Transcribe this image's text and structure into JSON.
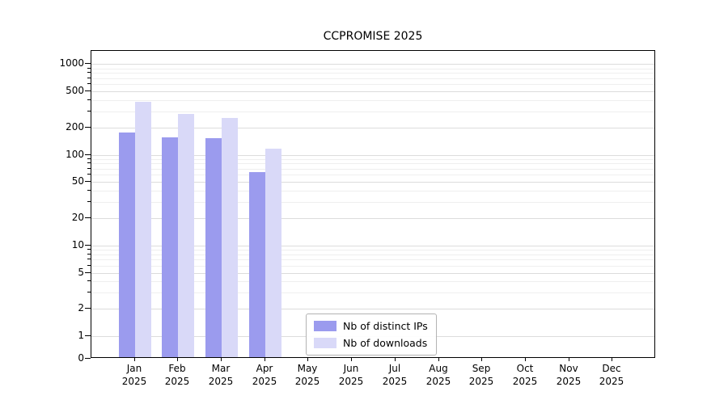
{
  "chart_data": {
    "type": "bar",
    "title": "CCPROMISE 2025",
    "x_year": "2025",
    "categories": [
      "Jan",
      "Feb",
      "Mar",
      "Apr",
      "May",
      "Jun",
      "Jul",
      "Aug",
      "Sep",
      "Oct",
      "Nov",
      "Dec"
    ],
    "series": [
      {
        "name": "Nb of distinct IPs",
        "color": "#9b9bee",
        "values": [
          170,
          150,
          145,
          62,
          0,
          0,
          0,
          0,
          0,
          0,
          0,
          0
        ]
      },
      {
        "name": "Nb of downloads",
        "color": "#d9d9f8",
        "values": [
          365,
          270,
          245,
          112,
          0,
          0,
          0,
          0,
          0,
          0,
          0,
          0
        ]
      }
    ],
    "y_scale": "symlog",
    "ylim": [
      0,
      1400
    ],
    "y_ticks": [
      0,
      1,
      2,
      5,
      10,
      20,
      50,
      100,
      200,
      500,
      1000
    ],
    "y_minor_ticks": [
      3,
      4,
      6,
      7,
      8,
      9,
      30,
      40,
      60,
      70,
      80,
      90,
      300,
      400,
      600,
      700,
      800,
      900
    ],
    "grid": "horizontal",
    "legend_position": "lower-center-inside",
    "xlabel": "",
    "ylabel": ""
  },
  "colors": {
    "grid_major": "#dcdcdc",
    "grid_minor": "#efefef",
    "axis": "#000000",
    "background": "#ffffff"
  }
}
